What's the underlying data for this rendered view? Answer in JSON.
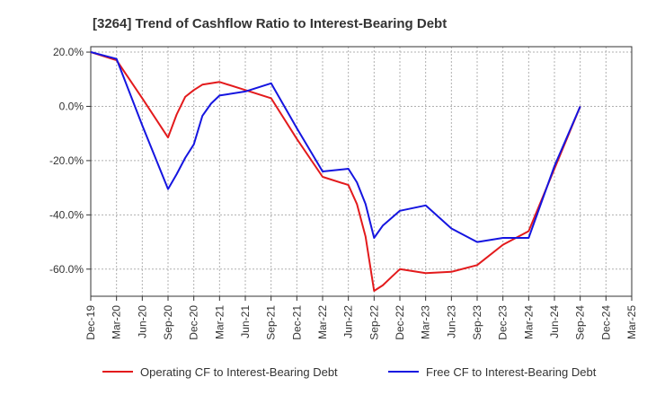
{
  "chart_data": {
    "type": "line",
    "title": "[3264]  Trend of Cashflow Ratio to Interest-Bearing Debt",
    "xlabel": "",
    "ylabel": "",
    "x_ticks": [
      "Dec-19",
      "Mar-20",
      "Jun-20",
      "Sep-20",
      "Dec-20",
      "Mar-21",
      "Jun-21",
      "Sep-21",
      "Dec-21",
      "Mar-22",
      "Jun-22",
      "Sep-22",
      "Dec-22",
      "Mar-23",
      "Jun-23",
      "Sep-23",
      "Dec-23",
      "Mar-24",
      "Jun-24",
      "Sep-24",
      "Dec-24",
      "Mar-25"
    ],
    "y_ticks": [
      20,
      0,
      -20,
      -40,
      -60
    ],
    "y_tick_labels": [
      "20.0%",
      "0.0%",
      "-20.0%",
      "-40.0%",
      "-60.0%"
    ],
    "ylim": [
      -70,
      22
    ],
    "grid": true,
    "legend_position": "bottom",
    "series": [
      {
        "name": "Operating CF to Interest-Bearing Debt",
        "color": "#e31a1c",
        "points": [
          [
            "Dec-19",
            20.0
          ],
          [
            "Mar-20",
            17.0
          ],
          [
            "Jun-20",
            3.0
          ],
          [
            "Sep-20",
            -11.5
          ],
          [
            "Oct-20",
            -3.0
          ],
          [
            "Nov-20",
            3.5
          ],
          [
            "Dec-20",
            6.0
          ],
          [
            "Jan-21",
            8.0
          ],
          [
            "Mar-21",
            9.0
          ],
          [
            "Jun-21",
            6.0
          ],
          [
            "Sep-21",
            3.0
          ],
          [
            "Dec-21",
            -12.0
          ],
          [
            "Mar-22",
            -26.0
          ],
          [
            "Jun-22",
            -29.0
          ],
          [
            "Jul-22",
            -36.0
          ],
          [
            "Aug-22",
            -48.0
          ],
          [
            "Sep-22",
            -68.0
          ],
          [
            "Oct-22",
            -66.0
          ],
          [
            "Nov-22",
            -63.0
          ],
          [
            "Dec-22",
            -60.0
          ],
          [
            "Mar-23",
            -61.5
          ],
          [
            "Jun-23",
            -61.0
          ],
          [
            "Sep-23",
            -58.5
          ],
          [
            "Dec-23",
            -51.0
          ],
          [
            "Mar-24",
            -46.0
          ],
          [
            "Jun-24",
            -23.0
          ],
          [
            "Sep-24",
            0.0
          ]
        ]
      },
      {
        "name": "Free CF to Interest-Bearing Debt",
        "color": "#1515e0",
        "points": [
          [
            "Dec-19",
            20.0
          ],
          [
            "Mar-20",
            17.5
          ],
          [
            "Jun-20",
            -7.0
          ],
          [
            "Sep-20",
            -30.5
          ],
          [
            "Oct-20",
            -25.0
          ],
          [
            "Nov-20",
            -19.0
          ],
          [
            "Dec-20",
            -14.0
          ],
          [
            "Jan-21",
            -3.5
          ],
          [
            "Feb-21",
            1.0
          ],
          [
            "Mar-21",
            4.0
          ],
          [
            "Jun-21",
            5.5
          ],
          [
            "Sep-21",
            8.5
          ],
          [
            "Dec-21",
            -8.0
          ],
          [
            "Mar-22",
            -24.0
          ],
          [
            "Jun-22",
            -23.0
          ],
          [
            "Jul-22",
            -28.0
          ],
          [
            "Aug-22",
            -36.0
          ],
          [
            "Sep-22",
            -48.5
          ],
          [
            "Oct-22",
            -44.0
          ],
          [
            "Dec-22",
            -38.5
          ],
          [
            "Mar-23",
            -36.5
          ],
          [
            "Jun-23",
            -45.0
          ],
          [
            "Sep-23",
            -50.0
          ],
          [
            "Dec-23",
            -48.5
          ],
          [
            "Mar-24",
            -48.5
          ],
          [
            "Jun-24",
            -22.0
          ],
          [
            "Sep-24",
            0.0
          ]
        ]
      }
    ]
  }
}
